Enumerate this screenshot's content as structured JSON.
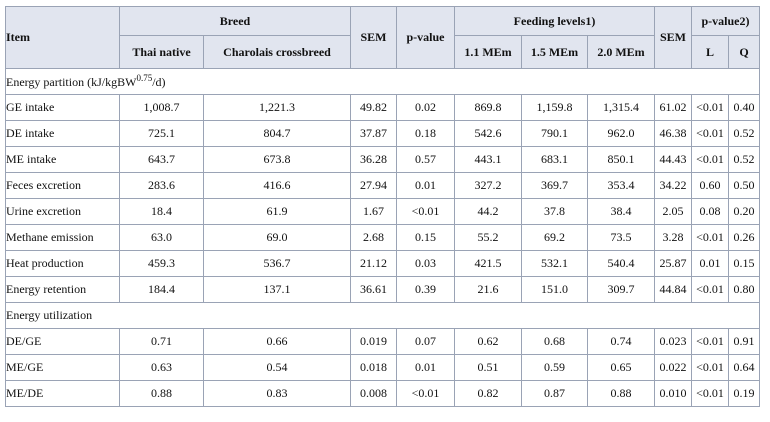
{
  "header": {
    "item": "Item",
    "breed_group": "Breed",
    "sem": "SEM",
    "p_value": "p-value",
    "feeding_group": "Feeding levels1)",
    "sem2": "SEM",
    "p_value2_group": "p-value2)",
    "breed_cols": [
      "Thai native",
      "Charolais crossbreed"
    ],
    "feeding_cols": [
      "1.1 MEm",
      "1.5 MEm",
      "2.0 MEm"
    ],
    "pvalue2_cols": [
      "L",
      "Q"
    ]
  },
  "sections": [
    {
      "title_main": "Energy partition (kJ/kgBW",
      "title_sup": "0.75",
      "title_tail": "/d)",
      "rows": [
        [
          "GE intake",
          "1,008.7",
          "1,221.3",
          "49.82",
          "0.02",
          "869.8",
          "1,159.8",
          "1,315.4",
          "61.02",
          "<0.01",
          "0.40"
        ],
        [
          "DE intake",
          "725.1",
          "804.7",
          "37.87",
          "0.18",
          "542.6",
          "790.1",
          "962.0",
          "46.38",
          "<0.01",
          "0.52"
        ],
        [
          "ME intake",
          "643.7",
          "673.8",
          "36.28",
          "0.57",
          "443.1",
          "683.1",
          "850.1",
          "44.43",
          "<0.01",
          "0.52"
        ],
        [
          "Feces excretion",
          "283.6",
          "416.6",
          "27.94",
          "0.01",
          "327.2",
          "369.7",
          "353.4",
          "34.22",
          "0.60",
          "0.50"
        ],
        [
          "Urine excretion",
          "18.4",
          "61.9",
          "1.67",
          "<0.01",
          "44.2",
          "37.8",
          "38.4",
          "2.05",
          "0.08",
          "0.20"
        ],
        [
          "Methane emission",
          "63.0",
          "69.0",
          "2.68",
          "0.15",
          "55.2",
          "69.2",
          "73.5",
          "3.28",
          "<0.01",
          "0.26"
        ],
        [
          "Heat production",
          "459.3",
          "536.7",
          "21.12",
          "0.03",
          "421.5",
          "532.1",
          "540.4",
          "25.87",
          "0.01",
          "0.15"
        ],
        [
          "Energy retention",
          "184.4",
          "137.1",
          "36.61",
          "0.39",
          "21.6",
          "151.0",
          "309.7",
          "44.84",
          "<0.01",
          "0.80"
        ]
      ]
    },
    {
      "title_main": "Energy utilization",
      "rows": [
        [
          "DE/GE",
          "0.71",
          "0.66",
          "0.019",
          "0.07",
          "0.62",
          "0.68",
          "0.74",
          "0.023",
          "<0.01",
          "0.91"
        ],
        [
          "ME/GE",
          "0.63",
          "0.54",
          "0.018",
          "0.01",
          "0.51",
          "0.59",
          "0.65",
          "0.022",
          "<0.01",
          "0.64"
        ],
        [
          "ME/DE",
          "0.88",
          "0.83",
          "0.008",
          "<0.01",
          "0.82",
          "0.87",
          "0.88",
          "0.010",
          "<0.01",
          "0.19"
        ]
      ]
    }
  ]
}
